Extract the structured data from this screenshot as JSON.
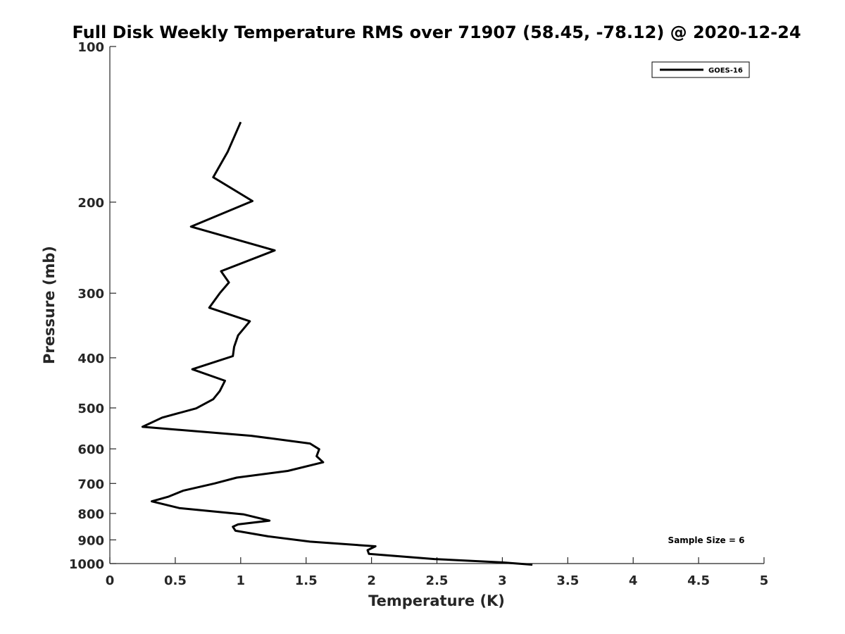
{
  "chart_data": {
    "type": "line",
    "title": "Full Disk Weekly Temperature RMS over 71907 (58.45, -78.12) @ 2020-12-24",
    "xlabel": "Temperature (K)",
    "ylabel": "Pressure (mb)",
    "xlim": [
      0,
      5
    ],
    "ylim": [
      100,
      1000
    ],
    "y_scale": "log",
    "y_reversed": true,
    "x_ticks": [
      0,
      0.5,
      1,
      1.5,
      2,
      2.5,
      3,
      3.5,
      4,
      4.5,
      5
    ],
    "x_tick_labels": [
      "0",
      "0.5",
      "1",
      "1.5",
      "2",
      "2.5",
      "3",
      "3.5",
      "4",
      "4.5",
      "5"
    ],
    "y_ticks": [
      100,
      200,
      300,
      400,
      500,
      600,
      700,
      800,
      900,
      1000
    ],
    "y_tick_labels": [
      "100",
      "200",
      "300",
      "400",
      "500",
      "600",
      "700",
      "800",
      "900",
      "1000"
    ],
    "grid": false,
    "legend": {
      "position": "top-right"
    },
    "series": [
      {
        "name": "GOES-16",
        "color": "#000000",
        "points": [
          [
            1.0,
            140
          ],
          [
            0.9,
            160
          ],
          [
            0.79,
            179
          ],
          [
            1.09,
            199
          ],
          [
            0.62,
            223
          ],
          [
            1.26,
            248
          ],
          [
            0.85,
            272
          ],
          [
            0.91,
            286
          ],
          [
            0.84,
            300
          ],
          [
            0.76,
            320
          ],
          [
            1.07,
            340
          ],
          [
            0.98,
            362
          ],
          [
            0.95,
            381
          ],
          [
            0.94,
            397
          ],
          [
            0.63,
            421
          ],
          [
            0.88,
            443
          ],
          [
            0.84,
            464
          ],
          [
            0.79,
            481
          ],
          [
            0.66,
            501
          ],
          [
            0.4,
            522
          ],
          [
            0.25,
            544
          ],
          [
            1.08,
            566
          ],
          [
            1.53,
            586
          ],
          [
            1.6,
            601
          ],
          [
            1.58,
            620
          ],
          [
            1.63,
            637
          ],
          [
            1.36,
            662
          ],
          [
            0.97,
            682
          ],
          [
            0.8,
            700
          ],
          [
            0.56,
            723
          ],
          [
            0.45,
            742
          ],
          [
            0.32,
            758
          ],
          [
            0.53,
            781
          ],
          [
            1.02,
            803
          ],
          [
            1.22,
            826
          ],
          [
            0.98,
            840
          ],
          [
            0.94,
            849
          ],
          [
            0.96,
            864
          ],
          [
            1.21,
            886
          ],
          [
            1.53,
            907
          ],
          [
            2.03,
            926
          ],
          [
            1.97,
            942
          ],
          [
            1.98,
            958
          ],
          [
            2.48,
            980
          ],
          [
            3.0,
            995
          ],
          [
            3.23,
            1005
          ]
        ]
      }
    ],
    "annotations": [
      {
        "text": "Sample Size = 6",
        "position": "bottom-right"
      }
    ]
  }
}
